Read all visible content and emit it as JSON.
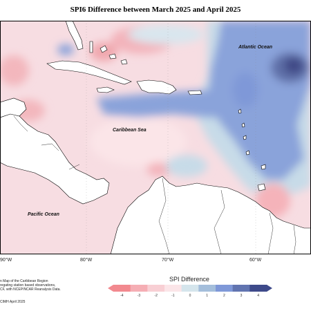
{
  "title": "SPI6 Difference between March 2025 and April 2025",
  "labels": {
    "atlantic": "Atlantic Ocean",
    "caribbean": "Caribbean Sea",
    "pacific": "Pacific Ocean"
  },
  "lon_ticks": [
    "90°W",
    "80°W",
    "70°W",
    "60°W"
  ],
  "footnote": {
    "line1": "n Map of the Caribbean Region",
    "line2": "regating station based observations,",
    "line3": "CF, with NCEP/NCAR Reanalysis Data.",
    "line4": "CIMH April 2025"
  },
  "legend": {
    "title": "SPI Difference",
    "ticks": [
      "-4",
      "-3",
      "-2",
      "-1",
      "0",
      "1",
      "2",
      "3",
      "4"
    ],
    "colors": [
      "#f2898f",
      "#f5aeb4",
      "#f8cfd4",
      "#fbe5e8",
      "#d5e5ec",
      "#a4bedb",
      "#7f98d8",
      "#6174b0",
      "#3e4a8a"
    ]
  }
}
